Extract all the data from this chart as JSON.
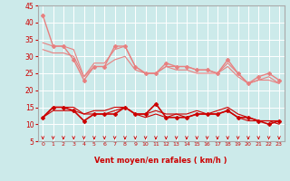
{
  "title": "",
  "xlabel": "Vent moyen/en rafales ( km/h )",
  "ylabel": "",
  "bg_color": "#cceaea",
  "grid_color": "#ffffff",
  "x": [
    0,
    1,
    2,
    3,
    4,
    5,
    6,
    7,
    8,
    9,
    10,
    11,
    12,
    13,
    14,
    15,
    16,
    17,
    18,
    19,
    20,
    21,
    22,
    23
  ],
  "series": [
    {
      "y": [
        42,
        33,
        33,
        29,
        23,
        27,
        27,
        33,
        33,
        27,
        25,
        25,
        28,
        27,
        27,
        26,
        26,
        25,
        29,
        25,
        22,
        24,
        25,
        23
      ],
      "color": "#e88080",
      "lw": 1.0,
      "marker": "D",
      "ms": 2.0,
      "zorder": 3
    },
    {
      "y": [
        34,
        33,
        33,
        32,
        24,
        28,
        28,
        32,
        33,
        27,
        25,
        25,
        27,
        27,
        27,
        26,
        26,
        25,
        28,
        25,
        22,
        23,
        24,
        22
      ],
      "color": "#e88080",
      "lw": 0.8,
      "marker": null,
      "ms": 0,
      "zorder": 2
    },
    {
      "y": [
        32,
        31,
        31,
        30,
        24,
        27,
        27,
        29,
        30,
        26,
        25,
        25,
        27,
        26,
        26,
        25,
        25,
        25,
        27,
        24,
        22,
        23,
        23,
        22
      ],
      "color": "#e88080",
      "lw": 0.8,
      "marker": null,
      "ms": 0,
      "zorder": 2
    },
    {
      "y": [
        12,
        15,
        15,
        14,
        11,
        13,
        13,
        13,
        15,
        13,
        13,
        16,
        12,
        12,
        12,
        13,
        13,
        13,
        14,
        12,
        12,
        11,
        10,
        11
      ],
      "color": "#cc0000",
      "lw": 1.2,
      "marker": "D",
      "ms": 2.0,
      "zorder": 5
    },
    {
      "y": [
        12,
        15,
        15,
        15,
        13,
        14,
        14,
        15,
        15,
        13,
        13,
        14,
        13,
        13,
        13,
        14,
        13,
        14,
        15,
        13,
        12,
        11,
        11,
        11
      ],
      "color": "#cc0000",
      "lw": 0.8,
      "marker": null,
      "ms": 0,
      "zorder": 4
    },
    {
      "y": [
        12,
        14,
        14,
        14,
        13,
        13,
        13,
        14,
        15,
        13,
        12,
        13,
        12,
        13,
        12,
        13,
        13,
        13,
        14,
        12,
        11,
        11,
        11,
        10
      ],
      "color": "#cc0000",
      "lw": 0.8,
      "marker": null,
      "ms": 0,
      "zorder": 4
    }
  ],
  "ylim": [
    5,
    45
  ],
  "yticks": [
    5,
    10,
    15,
    20,
    25,
    30,
    35,
    40,
    45
  ],
  "xticks": [
    0,
    1,
    2,
    3,
    4,
    5,
    6,
    7,
    8,
    9,
    10,
    11,
    12,
    13,
    14,
    15,
    16,
    17,
    18,
    19,
    20,
    21,
    22,
    23
  ],
  "arrow_color": "#cc0000",
  "xlabel_color": "#cc0000",
  "tick_color": "#cc0000",
  "axis_color": "#888888"
}
